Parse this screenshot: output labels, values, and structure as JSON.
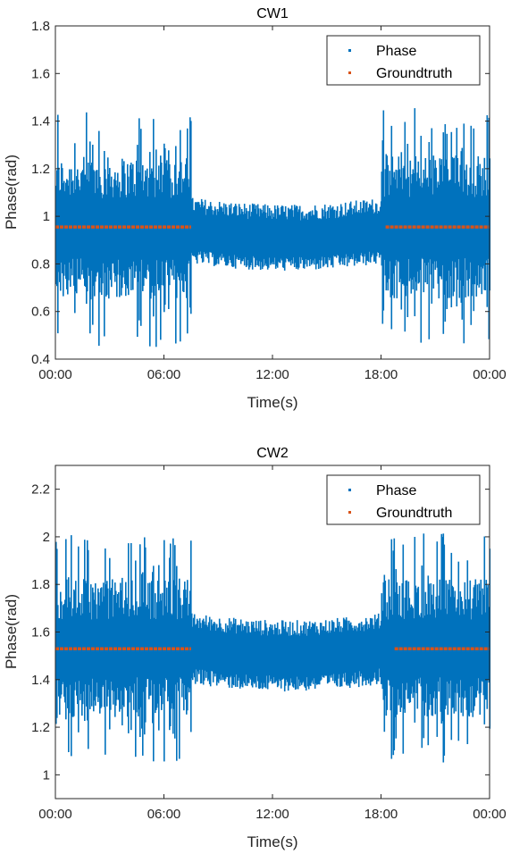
{
  "colors": {
    "phase": "#0072bd",
    "groundtruth": "#d95319",
    "axis": "#262626"
  },
  "chart_data": [
    {
      "type": "scatter",
      "title": "CW1",
      "xlabel": "Time(s)",
      "ylabel": "Phase(rad)",
      "xticks": [
        "00:00",
        "06:00",
        "12:00",
        "18:00",
        "00:00"
      ],
      "yticks": [
        "0.4",
        "0.6",
        "0.8",
        "1",
        "1.2",
        "1.4",
        "1.6",
        "1.8"
      ],
      "ylim": [
        0.4,
        1.8
      ],
      "grid": false,
      "legend": "top-right",
      "series": [
        {
          "name": "Phase",
          "color": "#0072bd",
          "segments": [
            {
              "x_start": "00:00",
              "x_end": "07:30",
              "center": 0.95,
              "min": 0.45,
              "max": 1.45
            },
            {
              "x_start": "07:30",
              "x_end": "18:00",
              "center": 0.93,
              "min": 0.8,
              "max": 1.08
            },
            {
              "x_start": "18:00",
              "x_end": "24:00",
              "center": 0.95,
              "min": 0.45,
              "max": 1.47
            }
          ]
        },
        {
          "name": "Groundtruth",
          "color": "#d95319",
          "segments": [
            {
              "x_start": "00:00",
              "x_end": "07:30",
              "value": 0.955
            },
            {
              "x_start": "18:15",
              "x_end": "24:00",
              "value": 0.955
            }
          ]
        }
      ]
    },
    {
      "type": "scatter",
      "title": "CW2",
      "xlabel": "Time(s)",
      "ylabel": "Phase(rad)",
      "xticks": [
        "00:00",
        "06:00",
        "12:00",
        "18:00",
        "00:00"
      ],
      "yticks": [
        "1",
        "1.2",
        "1.4",
        "1.6",
        "1.8",
        "2",
        "2.2"
      ],
      "ylim": [
        0.9,
        2.3
      ],
      "grid": false,
      "legend": "top-right",
      "series": [
        {
          "name": "Phase",
          "color": "#0072bd",
          "segments": [
            {
              "x_start": "00:00",
              "x_end": "07:30",
              "center": 1.53,
              "min": 1.05,
              "max": 2.02
            },
            {
              "x_start": "07:30",
              "x_end": "18:00",
              "center": 1.53,
              "min": 1.38,
              "max": 1.68
            },
            {
              "x_start": "18:00",
              "x_end": "24:00",
              "center": 1.53,
              "min": 1.05,
              "max": 2.02
            }
          ]
        },
        {
          "name": "Groundtruth",
          "color": "#d95319",
          "segments": [
            {
              "x_start": "00:00",
              "x_end": "07:30",
              "value": 1.53
            },
            {
              "x_start": "18:45",
              "x_end": "24:00",
              "value": 1.53
            }
          ]
        }
      ]
    }
  ]
}
